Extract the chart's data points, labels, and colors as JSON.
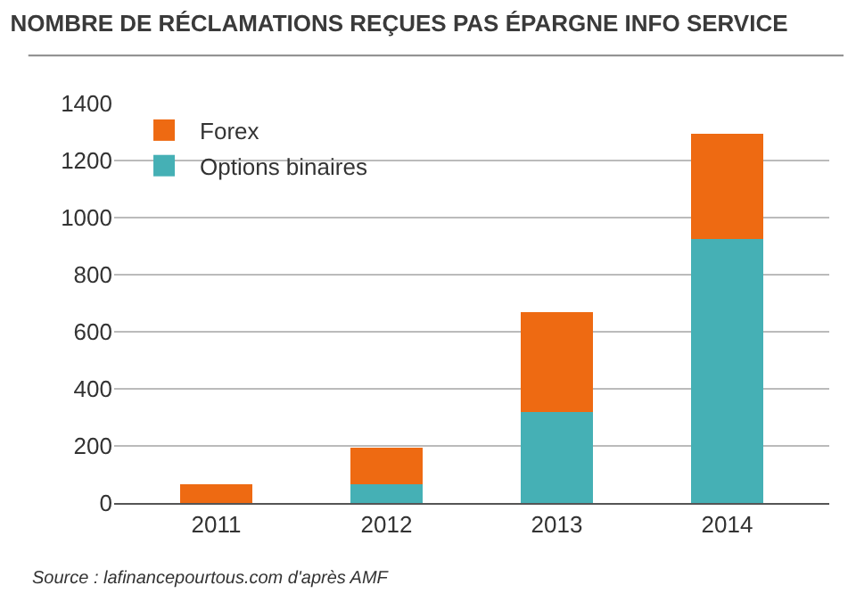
{
  "chart_data": {
    "type": "bar",
    "title": "NOMBRE DE RÉCLAMATIONS REÇUES PAS ÉPARGNE INFO SERVICE",
    "categories": [
      "2011",
      "2012",
      "2013",
      "2014"
    ],
    "stacked": true,
    "series": [
      {
        "name": "Options binaires",
        "color": "#45b0b5",
        "values": [
          0,
          65,
          320,
          925
        ]
      },
      {
        "name": "Forex",
        "color": "#ee6a12",
        "values": [
          65,
          130,
          350,
          370
        ]
      }
    ],
    "ylim": [
      0,
      1400
    ],
    "yticks": [
      0,
      200,
      400,
      600,
      800,
      1000,
      1200,
      1400
    ],
    "grid": "y",
    "legend": "top left",
    "annotations": [
      "Source : lafinancepourtous.com d'après AMF"
    ]
  }
}
